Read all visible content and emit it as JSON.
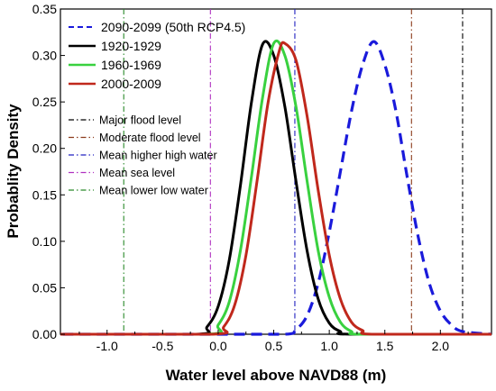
{
  "chart_data": {
    "type": "line",
    "title": "",
    "xlabel": "Water level above NAVD88 (m)",
    "ylabel": "Probablity Density",
    "xlim": [
      -1.42,
      2.46
    ],
    "ylim": [
      0,
      0.35
    ],
    "x_ticks": [
      -1.0,
      -0.5,
      0.0,
      0.5,
      1.0,
      1.5,
      2.0
    ],
    "x_tick_labels": [
      "-1.0",
      "-0.5",
      "0.0",
      "0.5",
      "1.0",
      "1.5",
      "2.0"
    ],
    "y_ticks": [
      0.0,
      0.05,
      0.1,
      0.15,
      0.2,
      0.25,
      0.3,
      0.35
    ],
    "y_tick_labels": [
      "0.00",
      "0.05",
      "0.10",
      "0.15",
      "0.20",
      "0.25",
      "0.30",
      "0.35"
    ],
    "grid": false,
    "legend_position": "top-left",
    "series": [
      {
        "name": "2090-2099 (50th RCP4.5)",
        "color": "#1a1adb",
        "style": "dashed",
        "x": [
          -1.4,
          0.0,
          0.6,
          0.7,
          0.8,
          0.9,
          1.0,
          1.1,
          1.2,
          1.3,
          1.4,
          1.5,
          1.6,
          1.7,
          1.8,
          1.9,
          2.0,
          2.1,
          2.2,
          2.46
        ],
        "y": [
          0.0,
          0.0,
          0.0,
          0.005,
          0.02,
          0.055,
          0.11,
          0.175,
          0.24,
          0.29,
          0.315,
          0.29,
          0.24,
          0.17,
          0.105,
          0.055,
          0.025,
          0.01,
          0.003,
          0.0
        ]
      },
      {
        "name": "1920-1929",
        "color": "#000000",
        "style": "solid",
        "x": [
          -1.42,
          -0.2,
          -0.1,
          0.0,
          0.1,
          0.2,
          0.3,
          0.4,
          0.5,
          0.6,
          0.7,
          0.8,
          0.9,
          1.0,
          1.1,
          1.2,
          2.46
        ],
        "y": [
          0.0,
          0.0,
          0.008,
          0.03,
          0.08,
          0.16,
          0.25,
          0.312,
          0.3,
          0.245,
          0.165,
          0.09,
          0.038,
          0.012,
          0.003,
          0.0,
          0.0
        ]
      },
      {
        "name": "1960-1969",
        "color": "#39d13f",
        "style": "solid",
        "x": [
          -1.42,
          -0.1,
          0.0,
          0.1,
          0.2,
          0.3,
          0.4,
          0.5,
          0.6,
          0.7,
          0.8,
          0.9,
          1.0,
          1.1,
          1.2,
          1.3,
          2.46
        ],
        "y": [
          0.0,
          0.0,
          0.01,
          0.035,
          0.09,
          0.17,
          0.255,
          0.313,
          0.3,
          0.245,
          0.165,
          0.09,
          0.04,
          0.013,
          0.003,
          0.0,
          0.0
        ]
      },
      {
        "name": "2000-2009",
        "color": "#c0281c",
        "style": "solid",
        "x": [
          -1.42,
          -0.05,
          0.05,
          0.15,
          0.25,
          0.35,
          0.45,
          0.55,
          0.6,
          0.7,
          0.8,
          0.9,
          1.0,
          1.1,
          1.2,
          1.3,
          1.4,
          2.46
        ],
        "y": [
          0.0,
          0.0,
          0.008,
          0.032,
          0.085,
          0.165,
          0.25,
          0.305,
          0.313,
          0.295,
          0.235,
          0.155,
          0.085,
          0.038,
          0.013,
          0.004,
          0.0,
          0.0
        ]
      }
    ],
    "reference_lines": [
      {
        "name": "Major flood level",
        "x": 2.2,
        "color": "#000000",
        "style": "dashdot"
      },
      {
        "name": "Moderate flood level",
        "x": 1.74,
        "color": "#8b3a1a",
        "style": "dashdot"
      },
      {
        "name": "Mean higher high water",
        "x": 0.69,
        "color": "#2020c0",
        "style": "dashdot"
      },
      {
        "name": "Mean sea level",
        "x": -0.07,
        "color": "#b030c0",
        "style": "dashdot"
      },
      {
        "name": "Mean lower low water",
        "x": -0.85,
        "color": "#2a8a2a",
        "style": "dashdot"
      }
    ]
  }
}
